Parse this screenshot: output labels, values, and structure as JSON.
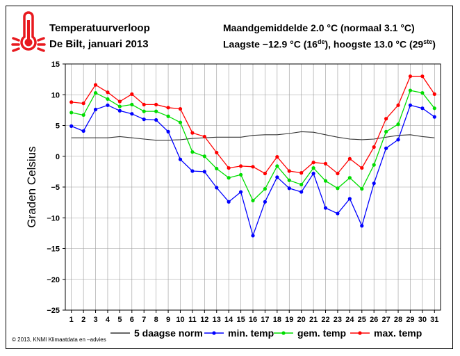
{
  "header": {
    "title_line1": "Temperatuurverloop",
    "title_line2": "De Bilt, januari 2013",
    "stats_line1": "Maandgemiddelde 2.0 °C (normaal 3.1 °C)",
    "stats_line2_pre": "Laagste −12.9 °C (16",
    "stats_line2_sup1": "de",
    "stats_line2_mid": "), hoogste 13.0 °C (29",
    "stats_line2_sup2": "ste",
    "stats_line2_post": ")"
  },
  "credit": "© 2013, KNMI Klimaatdata en –advies",
  "icon": {
    "name": "thermometer-icon",
    "color": "#e8191e"
  },
  "chart_data": {
    "type": "line",
    "ylabel": "Graden Celsius",
    "xlabel": "",
    "ylim": [
      -25,
      15
    ],
    "yticks": [
      -25,
      -20,
      -15,
      -10,
      -5,
      0,
      5,
      10,
      15
    ],
    "grid": true,
    "legend_placement": "bottom",
    "x": [
      1,
      2,
      3,
      4,
      5,
      6,
      7,
      8,
      9,
      10,
      11,
      12,
      13,
      14,
      15,
      16,
      17,
      18,
      19,
      20,
      21,
      22,
      23,
      24,
      25,
      26,
      27,
      28,
      29,
      30,
      31
    ],
    "series": [
      {
        "name": "5 daagse norm",
        "color": "#333333",
        "marker": false,
        "values": [
          3.0,
          3.0,
          3.0,
          3.0,
          3.2,
          3.0,
          2.8,
          2.6,
          2.6,
          2.7,
          2.9,
          3.0,
          3.1,
          3.1,
          3.1,
          3.4,
          3.5,
          3.5,
          3.7,
          4.0,
          3.9,
          3.5,
          3.1,
          2.8,
          2.7,
          2.8,
          3.1,
          3.4,
          3.5,
          3.2,
          3.0
        ]
      },
      {
        "name": "min. temp",
        "color": "#0000ff",
        "marker": true,
        "values": [
          4.9,
          4.1,
          7.6,
          8.3,
          7.4,
          6.9,
          6.0,
          5.9,
          4.0,
          -0.5,
          -2.4,
          -2.5,
          -5.1,
          -7.4,
          -5.8,
          -12.9,
          -7.4,
          -3.4,
          -5.2,
          -5.8,
          -2.8,
          -8.4,
          -9.3,
          -6.9,
          -11.3,
          -4.4,
          1.3,
          2.7,
          8.3,
          7.8,
          6.4
        ]
      },
      {
        "name": "gem. temp",
        "color": "#00dd00",
        "marker": true,
        "values": [
          7.1,
          6.7,
          10.3,
          9.3,
          8.1,
          8.4,
          7.3,
          7.3,
          6.5,
          5.5,
          0.7,
          0.0,
          -2.0,
          -3.5,
          -3.0,
          -7.2,
          -5.3,
          -1.6,
          -3.9,
          -4.6,
          -1.9,
          -4.0,
          -5.2,
          -3.5,
          -5.3,
          -1.4,
          4.0,
          5.2,
          10.7,
          10.3,
          7.8
        ]
      },
      {
        "name": "max. temp",
        "color": "#ff0000",
        "marker": true,
        "values": [
          8.8,
          8.6,
          11.6,
          10.4,
          8.9,
          10.1,
          8.4,
          8.4,
          7.9,
          7.7,
          3.8,
          3.2,
          0.6,
          -1.9,
          -1.6,
          -1.7,
          -2.8,
          -0.1,
          -2.4,
          -2.7,
          -1.0,
          -1.2,
          -2.8,
          -0.4,
          -1.9,
          1.5,
          6.1,
          8.3,
          13.0,
          13.0,
          10.1
        ]
      }
    ]
  }
}
